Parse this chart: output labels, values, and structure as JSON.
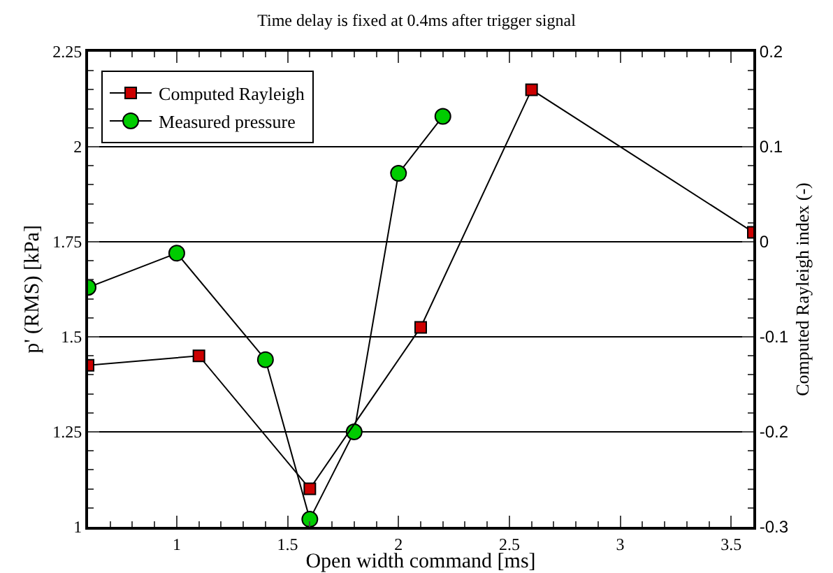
{
  "chart_data": {
    "type": "line",
    "title": "Time delay is fixed at 0.4ms after trigger signal",
    "xlabel": "Open width command [ms]",
    "ylabel": "p' (RMS) [kPa]",
    "y2label": "Computed Rayleigh index (-)",
    "xlim": [
      0.6,
      3.6
    ],
    "xticks": [
      1,
      1.5,
      2,
      2.5,
      3,
      3.5
    ],
    "ylim": [
      1,
      2.25
    ],
    "yticks": [
      1,
      1.25,
      1.5,
      1.75,
      2,
      2.25
    ],
    "y2lim": [
      -0.3,
      0.2
    ],
    "y2ticks": [
      -0.3,
      -0.2,
      -0.1,
      0,
      0.1,
      0.2
    ],
    "grid": "y",
    "legend": "top left",
    "line_style": "solid",
    "series": [
      {
        "name": "Computed Rayleigh",
        "color": "#cc0000",
        "axis": "y2",
        "marker": "square",
        "x": [
          0.6,
          1.1,
          1.6,
          2.1,
          2.6,
          3.6
        ],
        "values": [
          -0.13,
          -0.12,
          -0.26,
          -0.09,
          0.16,
          0.01
        ]
      },
      {
        "name": "Measured pressure",
        "color": "#00cc00",
        "axis": "y",
        "marker": "circle",
        "x": [
          0.6,
          1.0,
          1.4,
          1.6,
          1.8,
          2.0,
          2.2
        ],
        "values": [
          1.63,
          1.72,
          1.44,
          1.02,
          1.25,
          1.93,
          2.08
        ]
      }
    ]
  }
}
